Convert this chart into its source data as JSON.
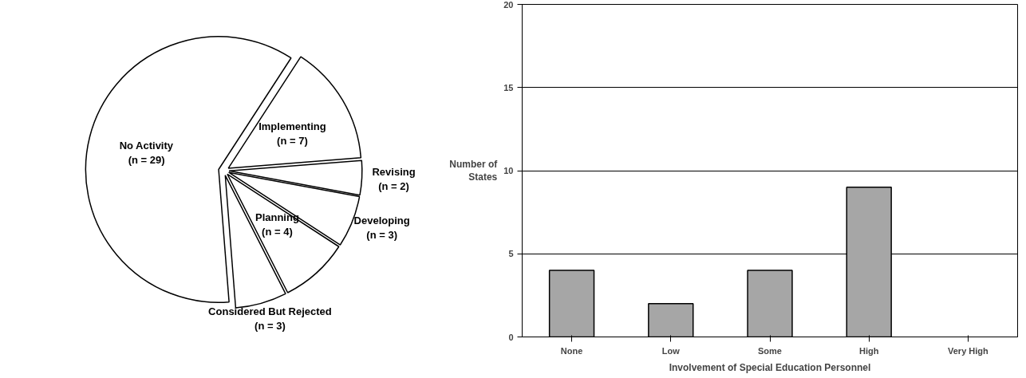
{
  "chart_data": [
    {
      "type": "pie",
      "categories": [
        "Implementing",
        "Revising",
        "Developing",
        "Planning",
        "Considered But Rejected",
        "No Activity"
      ],
      "values": [
        7,
        2,
        3,
        4,
        3,
        29
      ],
      "colors": [
        "#ffffff",
        "#ffffff",
        "#ffffff",
        "#ffffff",
        "#ffffff",
        "#ffffff"
      ],
      "value_labels": [
        "(n = 7)",
        "(n = 2)",
        "(n = 3)",
        "(n = 4)",
        "(n = 3)",
        "(n = 29)"
      ]
    },
    {
      "type": "bar",
      "categories": [
        "None",
        "Low",
        "Some",
        "High",
        "Very High"
      ],
      "values": [
        4,
        2,
        4,
        9,
        0
      ],
      "color": "#a6a6a6",
      "xlabel": "Involvement of Special Education Personnel",
      "ylabel": "Number of\nStates",
      "ylim": [
        0,
        20
      ],
      "yticks": [
        0,
        5,
        10,
        15,
        20
      ],
      "grid": "y"
    }
  ]
}
